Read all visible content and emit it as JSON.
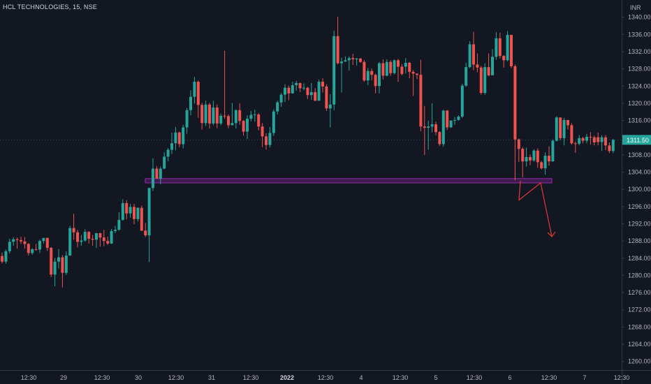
{
  "header": {
    "title": "HCL TECHNOLOGIES, 15, NSE"
  },
  "colors": {
    "background": "#131722",
    "up": "#26a69a",
    "down": "#ef5350",
    "zone_border": "#9c27b0",
    "zone_fill": "#4a1f5c",
    "arrow": "#e53935",
    "axis_text": "#b2b5be",
    "axis_line": "#363a45"
  },
  "chart_data": {
    "type": "candlestick",
    "title": "HCL TECHNOLOGIES, 15, NSE",
    "currency": "INR",
    "y_axis": {
      "min": 1258,
      "max": 1344,
      "ticks": [
        "1260.00",
        "1264.00",
        "1268.00",
        "1272.00",
        "1276.00",
        "1280.00",
        "1284.00",
        "1288.00",
        "1292.00",
        "1296.00",
        "1300.00",
        "1304.00",
        "1308.00",
        "1312.00",
        "1316.00",
        "1320.00",
        "1324.00",
        "1328.00",
        "1332.00",
        "1336.00",
        "1340.00"
      ]
    },
    "x_axis": {
      "labels": [
        "12:30",
        "29",
        "12:30",
        "30",
        "12:30",
        "31",
        "12:30",
        "2022",
        "12:30",
        "4",
        "12:30",
        "5",
        "12:30",
        "6",
        "12:30",
        "7",
        "12:30"
      ]
    },
    "last_price": {
      "label": "1311.50",
      "value": 1311.5
    },
    "support_zone": {
      "low": 1301.5,
      "high": 1302.5
    },
    "projection": [
      1302.0,
      1297.5,
      1301.5,
      1289.0
    ],
    "candles": [
      [
        1284.5,
        1283.2,
        1285.3,
        1282.8
      ],
      [
        1283.2,
        1285.6,
        1286.0,
        1282.7
      ],
      [
        1285.6,
        1287.8,
        1288.5,
        1285.1
      ],
      [
        1287.8,
        1288.4,
        1288.9,
        1286.9
      ],
      [
        1288.4,
        1288.2,
        1288.8,
        1286.2
      ],
      [
        1288.2,
        1287.9,
        1289.0,
        1287.3
      ],
      [
        1287.9,
        1287.3,
        1288.9,
        1286.2
      ],
      [
        1287.3,
        1285.2,
        1287.5,
        1284.6
      ],
      [
        1285.2,
        1286.1,
        1286.3,
        1284.8
      ],
      [
        1286.1,
        1286.0,
        1287.3,
        1285.7
      ],
      [
        1286.0,
        1288.0,
        1288.3,
        1285.2
      ],
      [
        1288.0,
        1288.7,
        1288.7,
        1287.4
      ],
      [
        1288.7,
        1286.4,
        1288.8,
        1285.7
      ],
      [
        1286.4,
        1280.2,
        1286.6,
        1279.6
      ],
      [
        1280.2,
        1283.2,
        1284.1,
        1277.5
      ],
      [
        1283.2,
        1284.2,
        1286.1,
        1281.6
      ],
      [
        1284.2,
        1280.6,
        1284.7,
        1277.2
      ],
      [
        1280.6,
        1284.6,
        1285.6,
        1280.1
      ],
      [
        1284.6,
        1291.0,
        1291.5,
        1284.6
      ],
      [
        1291.0,
        1290.0,
        1294.3,
        1288.3
      ],
      [
        1290.0,
        1287.8,
        1290.6,
        1286.5
      ],
      [
        1287.8,
        1288.1,
        1289.4,
        1286.9
      ],
      [
        1288.1,
        1290.1,
        1290.7,
        1287.8
      ],
      [
        1290.1,
        1288.5,
        1290.3,
        1287.4
      ],
      [
        1288.5,
        1288.3,
        1289.4,
        1286.9
      ],
      [
        1288.3,
        1289.8,
        1289.9,
        1286.4
      ],
      [
        1289.8,
        1288.8,
        1289.9,
        1286.7
      ],
      [
        1288.8,
        1288.0,
        1290.6,
        1286.8
      ],
      [
        1288.0,
        1287.4,
        1289.0,
        1287.1
      ],
      [
        1287.4,
        1290.3,
        1290.8,
        1287.3
      ],
      [
        1290.3,
        1290.6,
        1291.5,
        1289.8
      ],
      [
        1290.6,
        1292.9,
        1294.7,
        1290.4
      ],
      [
        1292.9,
        1296.8,
        1297.7,
        1292.7
      ],
      [
        1296.8,
        1294.4,
        1297.5,
        1293.0
      ],
      [
        1294.4,
        1295.9,
        1296.6,
        1293.4
      ],
      [
        1295.9,
        1293.1,
        1296.6,
        1291.9
      ],
      [
        1293.1,
        1295.7,
        1295.8,
        1292.5
      ],
      [
        1295.7,
        1290.4,
        1296.2,
        1290.3
      ],
      [
        1290.4,
        1289.3,
        1292.2,
        1288.9
      ],
      [
        1289.3,
        1300.3,
        1300.4,
        1283.1
      ],
      [
        1300.3,
        1304.8,
        1307.2,
        1299.6
      ],
      [
        1304.8,
        1302.5,
        1305.4,
        1302.4
      ],
      [
        1302.5,
        1304.8,
        1305.3,
        1301.2
      ],
      [
        1304.8,
        1307.6,
        1308.6,
        1304.7
      ],
      [
        1307.6,
        1309.2,
        1309.6,
        1306.5
      ],
      [
        1309.2,
        1310.7,
        1313.2,
        1308.2
      ],
      [
        1310.7,
        1313.2,
        1314.5,
        1309.1
      ],
      [
        1313.2,
        1310.5,
        1313.4,
        1309.8
      ],
      [
        1310.5,
        1314.4,
        1315.0,
        1309.5
      ],
      [
        1314.4,
        1318.4,
        1318.9,
        1312.9
      ],
      [
        1318.4,
        1321.5,
        1323.0,
        1317.2
      ],
      [
        1321.5,
        1325.0,
        1326.1,
        1319.9
      ],
      [
        1325.0,
        1319.6,
        1325.3,
        1316.6
      ],
      [
        1319.6,
        1315.4,
        1320.1,
        1313.9
      ],
      [
        1315.4,
        1319.7,
        1320.6,
        1314.7
      ],
      [
        1319.7,
        1315.3,
        1320.1,
        1314.1
      ],
      [
        1315.3,
        1319.0,
        1320.6,
        1314.9
      ],
      [
        1319.0,
        1315.3,
        1319.7,
        1314.2
      ],
      [
        1315.3,
        1317.1,
        1317.6,
        1314.9
      ],
      [
        1317.1,
        1317.0,
        1332.2,
        1316.4
      ],
      [
        1317.0,
        1314.9,
        1317.4,
        1314.2
      ],
      [
        1314.9,
        1315.4,
        1320.1,
        1314.9
      ],
      [
        1315.4,
        1318.4,
        1318.6,
        1314.1
      ],
      [
        1318.4,
        1315.9,
        1320.0,
        1315.0
      ],
      [
        1315.9,
        1313.4,
        1316.1,
        1312.5
      ],
      [
        1313.4,
        1316.4,
        1317.2,
        1311.7
      ],
      [
        1316.4,
        1317.3,
        1318.2,
        1315.8
      ],
      [
        1317.3,
        1317.4,
        1318.5,
        1315.7
      ],
      [
        1317.4,
        1314.6,
        1317.7,
        1313.7
      ],
      [
        1314.6,
        1312.3,
        1315.4,
        1309.8
      ],
      [
        1312.3,
        1310.3,
        1313.0,
        1309.2
      ],
      [
        1310.3,
        1313.1,
        1314.5,
        1309.7
      ],
      [
        1313.1,
        1318.1,
        1318.6,
        1312.4
      ],
      [
        1318.1,
        1320.2,
        1320.6,
        1317.4
      ],
      [
        1320.2,
        1322.0,
        1322.4,
        1319.2
      ],
      [
        1322.0,
        1323.6,
        1324.4,
        1320.3
      ],
      [
        1323.6,
        1322.3,
        1324.1,
        1320.7
      ],
      [
        1322.3,
        1324.2,
        1325.0,
        1322.3
      ],
      [
        1324.2,
        1324.7,
        1325.2,
        1322.9
      ],
      [
        1324.7,
        1323.5,
        1324.8,
        1322.6
      ],
      [
        1323.5,
        1323.6,
        1324.6,
        1323.0
      ],
      [
        1323.6,
        1321.9,
        1323.8,
        1321.0
      ],
      [
        1321.9,
        1322.6,
        1324.7,
        1320.8
      ],
      [
        1322.6,
        1320.6,
        1323.5,
        1320.5
      ],
      [
        1320.6,
        1325.0,
        1325.5,
        1320.6
      ],
      [
        1325.0,
        1323.9,
        1325.8,
        1322.5
      ],
      [
        1323.9,
        1318.8,
        1324.4,
        1318.2
      ],
      [
        1318.8,
        1319.7,
        1322.1,
        1314.4
      ],
      [
        1319.7,
        1335.6,
        1336.9,
        1318.4
      ],
      [
        1335.6,
        1329.3,
        1340.1,
        1329.0
      ],
      [
        1329.3,
        1329.7,
        1330.6,
        1322.5
      ],
      [
        1329.7,
        1330.0,
        1330.9,
        1329.6
      ],
      [
        1330.0,
        1330.5,
        1330.9,
        1327.6
      ],
      [
        1330.5,
        1330.2,
        1331.5,
        1328.9
      ],
      [
        1330.2,
        1330.4,
        1330.5,
        1328.8
      ],
      [
        1330.4,
        1329.6,
        1330.5,
        1329.4
      ],
      [
        1329.6,
        1325.3,
        1330.0,
        1325.0
      ],
      [
        1325.3,
        1327.5,
        1328.2,
        1324.2
      ],
      [
        1327.5,
        1326.6,
        1328.1,
        1325.3
      ],
      [
        1326.6,
        1324.0,
        1326.9,
        1322.3
      ],
      [
        1324.0,
        1329.3,
        1329.6,
        1322.3
      ],
      [
        1329.3,
        1326.4,
        1330.2,
        1325.5
      ],
      [
        1326.4,
        1329.6,
        1330.2,
        1326.3
      ],
      [
        1329.6,
        1327.0,
        1330.0,
        1326.4
      ],
      [
        1327.0,
        1330.0,
        1330.2,
        1326.7
      ],
      [
        1330.0,
        1328.5,
        1330.3,
        1325.0
      ],
      [
        1328.5,
        1326.8,
        1329.1,
        1326.5
      ],
      [
        1328.5,
        1329.4,
        1330.5,
        1326.9
      ],
      [
        1329.4,
        1327.3,
        1329.6,
        1325.8
      ],
      [
        1327.3,
        1326.9,
        1327.7,
        1321.7
      ],
      [
        1326.9,
        1326.6,
        1326.8,
        1325.6
      ],
      [
        1326.6,
        1314.6,
        1330.1,
        1313.5
      ],
      [
        1314.6,
        1314.3,
        1319.4,
        1308.0
      ],
      [
        1314.3,
        1314.6,
        1316.0,
        1309.2
      ],
      [
        1314.6,
        1315.1,
        1320.0,
        1313.2
      ],
      [
        1315.1,
        1313.3,
        1315.7,
        1312.6
      ],
      [
        1313.3,
        1310.5,
        1313.5,
        1310.1
      ],
      [
        1310.5,
        1318.3,
        1318.5,
        1309.9
      ],
      [
        1318.3,
        1314.4,
        1318.4,
        1313.8
      ],
      [
        1314.4,
        1316.0,
        1316.0,
        1314.3
      ],
      [
        1316.0,
        1316.1,
        1316.8,
        1315.0
      ],
      [
        1316.1,
        1316.9,
        1317.2,
        1316.0
      ],
      [
        1316.9,
        1324.1,
        1324.5,
        1316.6
      ],
      [
        1324.1,
        1328.4,
        1329.4,
        1323.8
      ],
      [
        1328.4,
        1333.7,
        1334.4,
        1328.2
      ],
      [
        1333.7,
        1329.0,
        1336.6,
        1327.7
      ],
      [
        1329.0,
        1328.3,
        1331.6,
        1327.2
      ],
      [
        1328.3,
        1322.4,
        1328.7,
        1322.0
      ],
      [
        1322.4,
        1328.4,
        1329.3,
        1322.0
      ],
      [
        1328.4,
        1326.5,
        1331.6,
        1326.3
      ],
      [
        1326.5,
        1330.8,
        1332.6,
        1326.6
      ],
      [
        1330.8,
        1335.1,
        1336.5,
        1330.1
      ],
      [
        1335.1,
        1331.0,
        1336.4,
        1330.4
      ],
      [
        1331.0,
        1330.0,
        1331.2,
        1328.3
      ],
      [
        1330.0,
        1335.9,
        1336.8,
        1329.7
      ],
      [
        1335.9,
        1328.6,
        1332.5,
        1328.2
      ],
      [
        1328.6,
        1311.6,
        1329.0,
        1302.1
      ],
      [
        1311.6,
        1309.4,
        1311.8,
        1306.4
      ],
      [
        1309.4,
        1306.5,
        1309.8,
        1302.8
      ],
      [
        1306.5,
        1307.5,
        1309.7,
        1305.3
      ],
      [
        1307.5,
        1306.7,
        1308.1,
        1305.6
      ],
      [
        1306.7,
        1309.0,
        1309.3,
        1306.4
      ],
      [
        1309.0,
        1306.3,
        1309.5,
        1305.0
      ],
      [
        1306.3,
        1304.9,
        1306.6,
        1304.6
      ],
      [
        1304.9,
        1307.8,
        1308.6,
        1303.4
      ],
      [
        1307.8,
        1306.5,
        1310.0,
        1305.5
      ],
      [
        1306.5,
        1311.3,
        1311.6,
        1306.4
      ],
      [
        1311.3,
        1316.7,
        1317.0,
        1311.1
      ],
      [
        1316.7,
        1311.9,
        1316.3,
        1311.4
      ],
      [
        1311.9,
        1316.1,
        1316.6,
        1310.2
      ],
      [
        1316.1,
        1314.9,
        1316.1,
        1313.9
      ],
      [
        1314.9,
        1310.7,
        1315.4,
        1310.4
      ],
      [
        1310.7,
        1310.6,
        1311.1,
        1308.5
      ],
      [
        1310.6,
        1311.9,
        1312.6,
        1310.2
      ],
      [
        1311.9,
        1311.3,
        1312.2,
        1310.7
      ],
      [
        1311.3,
        1312.2,
        1312.9,
        1310.7
      ],
      [
        1312.2,
        1312.1,
        1313.3,
        1310.4
      ],
      [
        1312.1,
        1310.9,
        1312.5,
        1310.2
      ],
      [
        1312.1,
        1311.0,
        1313.2,
        1310.2
      ],
      [
        1311.0,
        1312.1,
        1312.6,
        1308.9
      ],
      [
        1312.1,
        1310.2,
        1312.6,
        1309.1
      ],
      [
        1310.2,
        1308.9,
        1310.9,
        1308.4
      ],
      [
        1308.9,
        1311.5,
        1311.7,
        1308.4
      ]
    ]
  }
}
